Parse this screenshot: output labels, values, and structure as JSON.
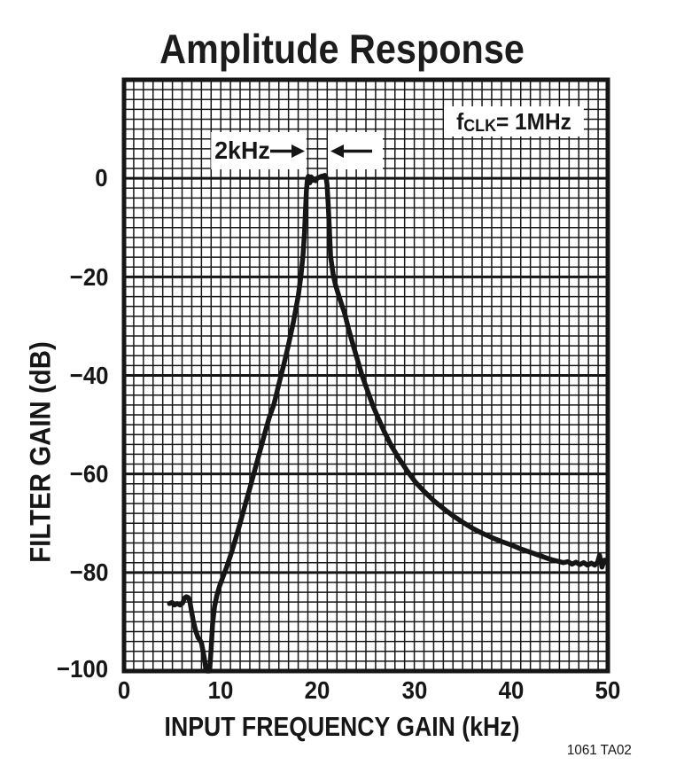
{
  "title": "Amplitude Response",
  "figure_id": "1061 TA02",
  "colors": {
    "ink": "#161616",
    "background": "#ffffff"
  },
  "annotations": {
    "clock": {
      "prefix": "f",
      "subscript": "CLK",
      "suffix": " = 1MHz"
    },
    "bandwidth": {
      "label": "2kHz"
    }
  },
  "axes": {
    "x": {
      "title": "INPUT FREQUENCY GAIN (kHz)",
      "ticks": [
        "0",
        "10",
        "20",
        "30",
        "40",
        "50"
      ]
    },
    "y": {
      "title": "FILTER GAIN (dB)",
      "ticks": [
        "0",
        "−20",
        "−40",
        "−60",
        "−80",
        "−100"
      ]
    }
  },
  "chart_data": {
    "type": "line",
    "title": "Amplitude Response",
    "xlabel": "INPUT FREQUENCY GAIN (kHz)",
    "ylabel": "FILTER GAIN (dB)",
    "xlim": [
      0,
      50
    ],
    "ylim": [
      -100,
      20
    ],
    "x_tick_step": 10,
    "y_tick_step": 20,
    "minor_grid_khz": 1,
    "minor_grid_db": 2,
    "grid": "on",
    "annotations": [
      {
        "type": "text",
        "text": "fCLK = 1MHz"
      },
      {
        "type": "bandwidth-marker",
        "text": "2kHz",
        "from_khz": 19,
        "to_khz": 21
      }
    ],
    "series": [
      {
        "name": "filter-gain",
        "points": [
          [
            4.7,
            -86.3
          ],
          [
            4.95,
            -86.1
          ],
          [
            5.2,
            -86.6
          ],
          [
            5.5,
            -86.3
          ],
          [
            5.8,
            -86.6
          ],
          [
            6.05,
            -86.2
          ],
          [
            6.25,
            -85.2
          ],
          [
            6.45,
            -84.9
          ],
          [
            6.65,
            -85.1
          ],
          [
            6.8,
            -85.9
          ],
          [
            6.95,
            -87.6
          ],
          [
            7.15,
            -89.8
          ],
          [
            7.4,
            -91.8
          ],
          [
            7.65,
            -93.2
          ],
          [
            7.9,
            -93.9
          ],
          [
            8.0,
            -94.3
          ],
          [
            8.15,
            -95.8
          ],
          [
            8.3,
            -97.4
          ],
          [
            8.45,
            -99.6
          ],
          [
            8.55,
            -100
          ],
          [
            8.85,
            -100
          ],
          [
            9.0,
            -95.5
          ],
          [
            9.15,
            -90.5
          ],
          [
            9.35,
            -87.0
          ],
          [
            9.6,
            -84.6
          ],
          [
            9.9,
            -82.6
          ],
          [
            10.2,
            -81.0
          ],
          [
            10.6,
            -78.9
          ],
          [
            11.0,
            -76.6
          ],
          [
            11.5,
            -73.4
          ],
          [
            12.0,
            -70.0
          ],
          [
            12.5,
            -66.4
          ],
          [
            13.0,
            -62.9
          ],
          [
            13.5,
            -59.3
          ],
          [
            14.0,
            -55.7
          ],
          [
            14.5,
            -52.1
          ],
          [
            15.0,
            -48.6
          ],
          [
            15.5,
            -45.8
          ],
          [
            16.0,
            -41.8
          ],
          [
            16.5,
            -37.9
          ],
          [
            17.0,
            -33.8
          ],
          [
            17.5,
            -29.2
          ],
          [
            18.0,
            -23.9
          ],
          [
            18.3,
            -19.6
          ],
          [
            18.5,
            -15.6
          ],
          [
            18.65,
            -11.0
          ],
          [
            18.75,
            -6.5
          ],
          [
            18.85,
            -2.6
          ],
          [
            18.95,
            -0.3
          ],
          [
            19.05,
            0.4
          ],
          [
            19.2,
            -0.9
          ],
          [
            19.35,
            0.3
          ],
          [
            19.5,
            -0.4
          ],
          [
            19.65,
            -0.1
          ],
          [
            19.8,
            -0.5
          ],
          [
            19.95,
            0.0
          ],
          [
            20.15,
            0.2
          ],
          [
            20.4,
            0.4
          ],
          [
            20.6,
            0.5
          ],
          [
            20.75,
            0.6
          ],
          [
            20.88,
            0.2
          ],
          [
            20.98,
            -1.2
          ],
          [
            21.1,
            -5.2
          ],
          [
            21.22,
            -10.0
          ],
          [
            21.35,
            -15.8
          ],
          [
            21.6,
            -19.4
          ],
          [
            21.85,
            -21.6
          ],
          [
            22.1,
            -23.2
          ],
          [
            22.45,
            -25.4
          ],
          [
            22.8,
            -27.4
          ],
          [
            23.2,
            -30.5
          ],
          [
            23.7,
            -34.0
          ],
          [
            24.15,
            -37.0
          ],
          [
            24.6,
            -40.0
          ],
          [
            25.15,
            -43.0
          ],
          [
            25.7,
            -46.0
          ],
          [
            26.3,
            -48.8
          ],
          [
            26.9,
            -51.4
          ],
          [
            27.6,
            -54.2
          ],
          [
            28.4,
            -56.8
          ],
          [
            29.2,
            -59.2
          ],
          [
            30.1,
            -61.6
          ],
          [
            31.0,
            -63.5
          ],
          [
            32.0,
            -65.4
          ],
          [
            33.0,
            -67.0
          ],
          [
            34.0,
            -68.5
          ],
          [
            35.0,
            -69.8
          ],
          [
            36.0,
            -71.0
          ],
          [
            37.0,
            -72.0
          ],
          [
            38.0,
            -72.9
          ],
          [
            39.0,
            -73.7
          ],
          [
            40.0,
            -74.4
          ],
          [
            41.0,
            -75.2
          ],
          [
            42.0,
            -75.9
          ],
          [
            43.0,
            -76.6
          ],
          [
            44.0,
            -77.3
          ],
          [
            44.8,
            -77.7
          ],
          [
            45.4,
            -78.0
          ],
          [
            45.9,
            -77.8
          ],
          [
            46.3,
            -78.3
          ],
          [
            46.7,
            -77.9
          ],
          [
            47.1,
            -78.4
          ],
          [
            47.5,
            -78.0
          ],
          [
            47.9,
            -78.5
          ],
          [
            48.3,
            -78.1
          ],
          [
            48.65,
            -78.5
          ],
          [
            48.95,
            -77.9
          ],
          [
            49.15,
            -76.5
          ],
          [
            49.4,
            -78.9
          ],
          [
            49.65,
            -77.5
          ],
          [
            49.95,
            -78.1
          ]
        ]
      }
    ]
  }
}
